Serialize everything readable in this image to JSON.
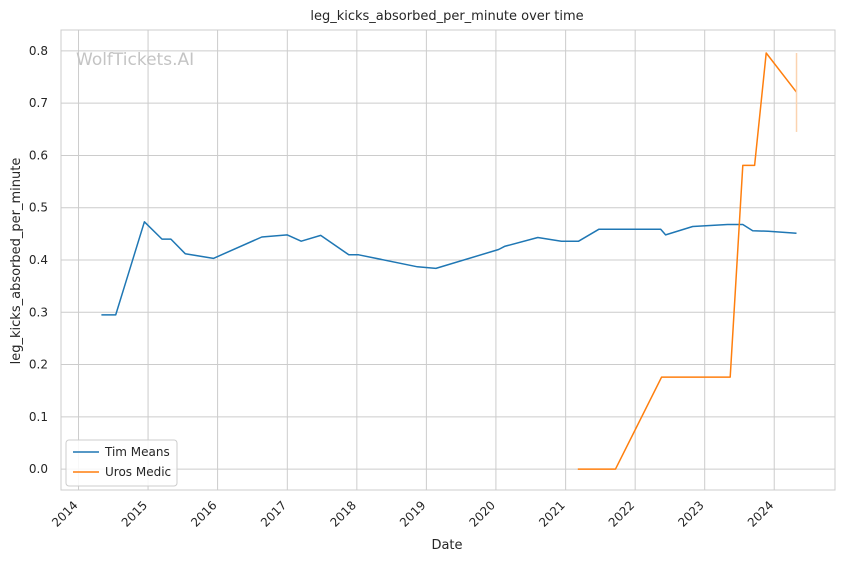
{
  "chart_data": {
    "type": "line",
    "title": "leg_kicks_absorbed_per_minute over time",
    "xlabel": "Date",
    "ylabel": "leg_kicks_absorbed_per_minute",
    "watermark": "WolfTickets.AI",
    "x_ticks": [
      "2014",
      "2015",
      "2016",
      "2017",
      "2018",
      "2019",
      "2020",
      "2021",
      "2022",
      "2023",
      "2024"
    ],
    "y_ticks": [
      "0.0",
      "0.1",
      "0.2",
      "0.3",
      "0.4",
      "0.5",
      "0.6",
      "0.7",
      "0.8"
    ],
    "xlim": [
      "2013-10-01",
      "2024-11-15"
    ],
    "ylim": [
      -0.04,
      0.84
    ],
    "grid": true,
    "legend_position": "lower-left",
    "series": [
      {
        "name": "Tim Means",
        "color": "#1f77b4",
        "x": [
          "2014-05-01",
          "2014-07-15",
          "2014-12-13",
          "2015-03-15",
          "2015-05-01",
          "2015-07-15",
          "2015-12-10",
          "2016-08-20",
          "2017-01-01",
          "2017-03-15",
          "2017-06-25",
          "2017-11-20",
          "2018-01-10",
          "2018-11-15",
          "2019-02-20",
          "2020-01-15",
          "2020-02-15",
          "2020-08-08",
          "2020-12-10",
          "2021-03-10",
          "2021-06-25",
          "2022-01-01",
          "2022-05-15",
          "2022-06-10",
          "2022-10-30",
          "2023-05-01",
          "2023-07-20",
          "2023-09-10",
          "2023-12-01",
          "2024-04-27"
        ],
        "y": [
          0.295,
          0.295,
          0.473,
          0.44,
          0.44,
          0.412,
          0.403,
          0.444,
          0.448,
          0.436,
          0.447,
          0.41,
          0.41,
          0.387,
          0.384,
          0.42,
          0.426,
          0.443,
          0.436,
          0.436,
          0.459,
          0.459,
          0.459,
          0.448,
          0.464,
          0.468,
          0.468,
          0.456,
          0.455,
          0.451
        ]
      },
      {
        "name": "Uros Medic",
        "color": "#ff7f0e",
        "x": [
          "2021-03-06",
          "2021-09-20",
          "2022-05-20",
          "2023-05-15",
          "2023-07-20",
          "2023-09-20",
          "2023-11-20",
          "2024-04-27"
        ],
        "y": [
          0.0,
          0.0,
          0.176,
          0.176,
          0.581,
          0.581,
          0.796,
          0.721
        ]
      }
    ],
    "error_band": {
      "series": "Uros Medic",
      "x": "2024-04-27",
      "y_low": 0.645,
      "y_high": 0.796
    }
  }
}
